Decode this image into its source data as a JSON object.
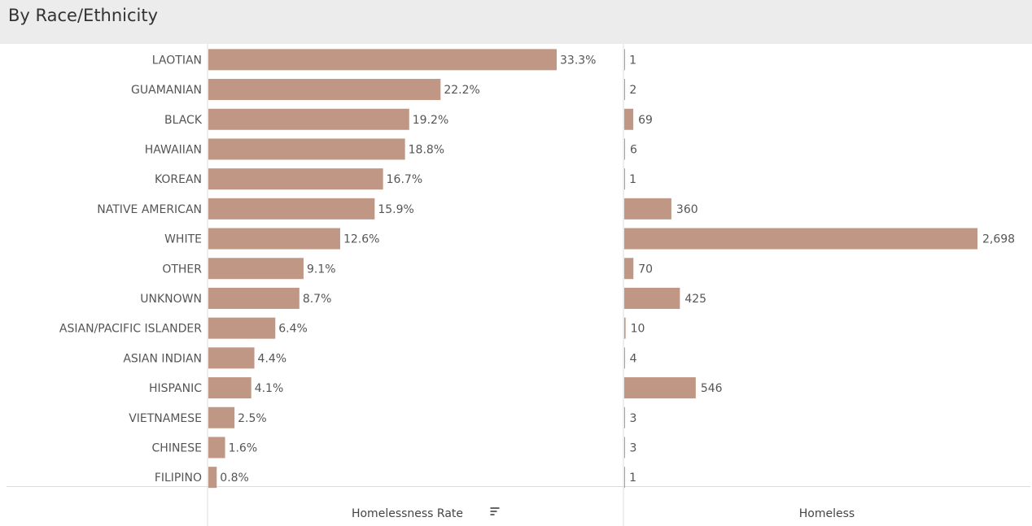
{
  "header": {
    "title": "By Race/Ethnicity"
  },
  "colors": {
    "bar": "#bf9784",
    "header_bg": "#ececec",
    "grid": "#dddddd"
  },
  "chart_data": {
    "type": "bar",
    "orientation": "horizontal",
    "sorted_by": "Homelessness Rate",
    "categories": [
      "LAOTIAN",
      "GUAMANIAN",
      "BLACK",
      "HAWAIIAN",
      "KOREAN",
      "NATIVE AMERICAN",
      "WHITE",
      "OTHER",
      "UNKNOWN",
      "ASIAN/PACIFIC ISLANDER",
      "ASIAN INDIAN",
      "HISPANIC",
      "VIETNAMESE",
      "CHINESE",
      "FILIPINO"
    ],
    "series": [
      {
        "name": "Homelessness Rate",
        "values": [
          33.3,
          22.2,
          19.2,
          18.8,
          16.7,
          15.9,
          12.6,
          9.1,
          8.7,
          6.4,
          4.4,
          4.1,
          2.5,
          1.6,
          0.8
        ],
        "labels": [
          "33.3%",
          "22.2%",
          "19.2%",
          "18.8%",
          "16.7%",
          "15.9%",
          "12.6%",
          "9.1%",
          "8.7%",
          "6.4%",
          "4.4%",
          "4.1%",
          "2.5%",
          "1.6%",
          "0.8%"
        ],
        "xlim": [
          0,
          40
        ]
      },
      {
        "name": "Homeless",
        "values": [
          1,
          2,
          69,
          6,
          1,
          360,
          2698,
          70,
          425,
          10,
          4,
          546,
          3,
          3,
          1
        ],
        "labels": [
          "1",
          "2",
          "69",
          "6",
          "1",
          "360",
          "2,698",
          "70",
          "425",
          "10",
          "4",
          "546",
          "3",
          "3",
          "1"
        ],
        "xlim": [
          0,
          2790
        ]
      }
    ]
  }
}
